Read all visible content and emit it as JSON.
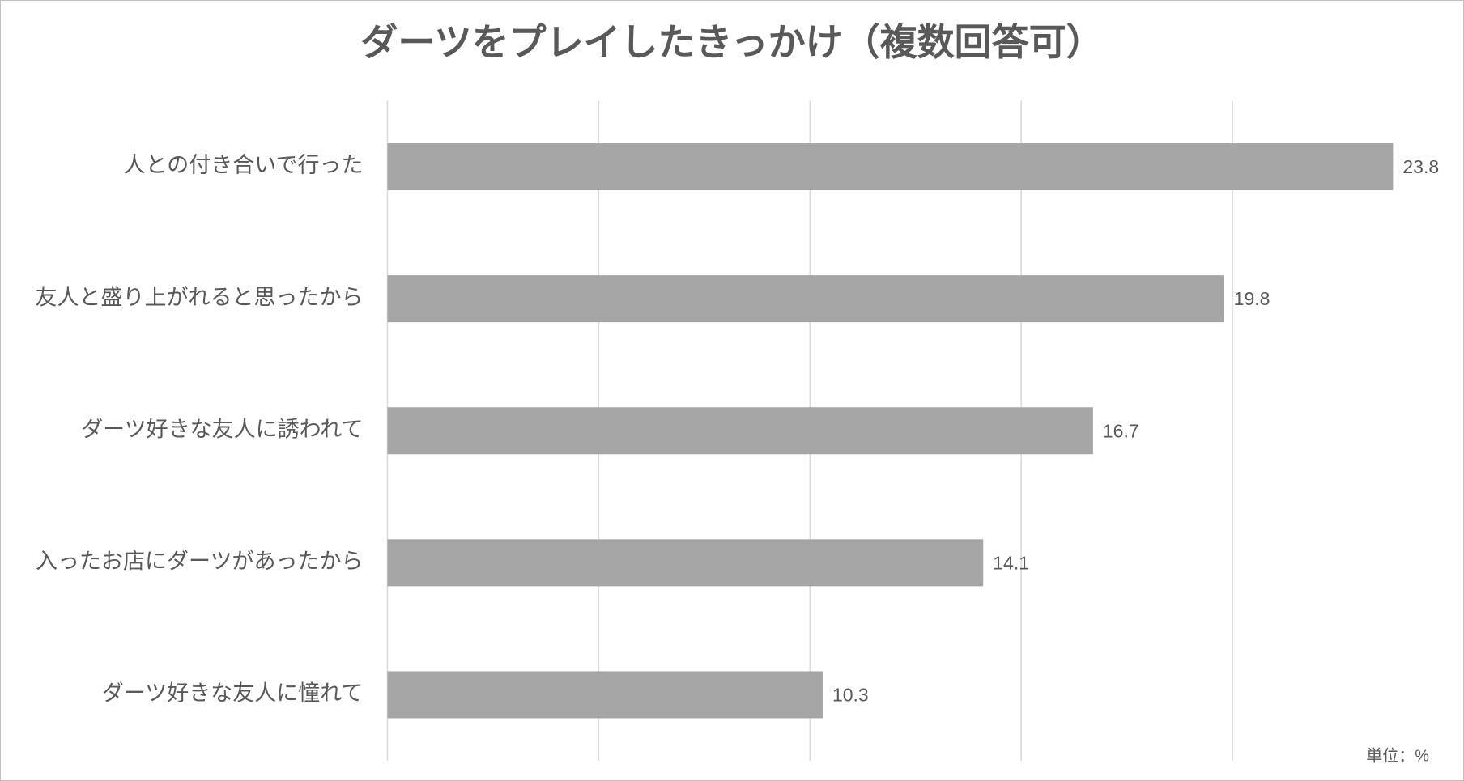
{
  "chart_data": {
    "type": "hbar",
    "title": "ダーツをプレイしたきっかけ（複数回答可）",
    "categories": [
      "人との付き合いで行った",
      "友人と盛り上がれると思ったから",
      "ダーツ好きな友人に誘われて",
      "入ったお店にダーツがあったから",
      "ダーツ好きな友人に憧れて"
    ],
    "values": [
      23.8,
      19.8,
      16.7,
      14.1,
      10.3
    ],
    "color": "#a5a5a5",
    "xlim": [
      0,
      25
    ],
    "xticks": [
      0,
      5,
      10,
      15,
      20
    ],
    "grid": true,
    "annotation": "単位：%"
  }
}
